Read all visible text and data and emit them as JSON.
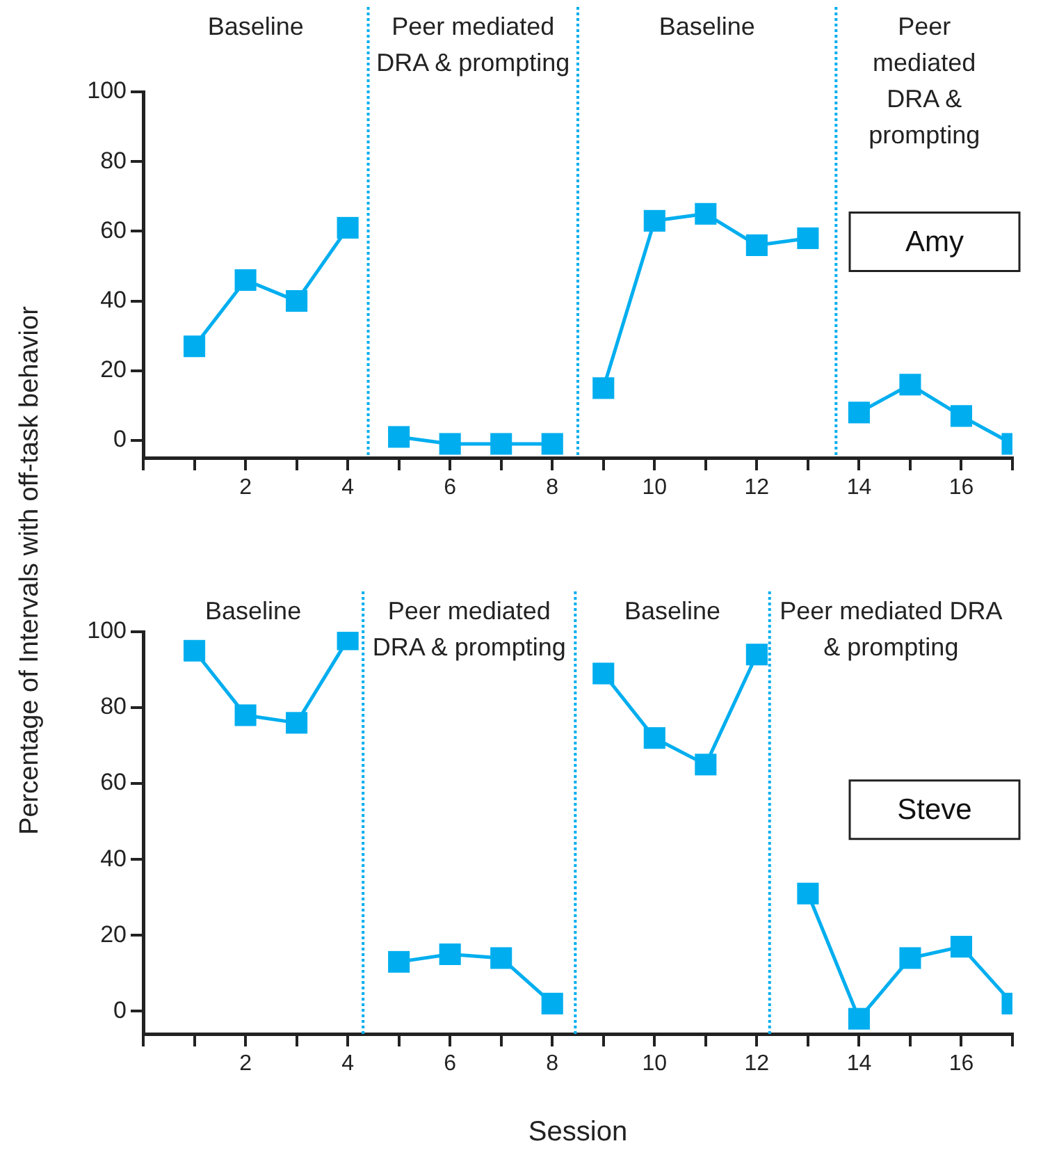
{
  "chart_data": [
    {
      "type": "line",
      "title": "Amy",
      "ylabel": "Percentage of Intervals with off-task behavior",
      "marker": "square",
      "line_style": "solid",
      "grid": false,
      "legend": false,
      "xlim": [
        0,
        17
      ],
      "xticks": [
        {
          "value": 0,
          "label": null
        },
        {
          "value": 1,
          "label": null
        },
        2,
        {
          "value": 3,
          "label": null
        },
        4,
        {
          "value": 5,
          "label": null
        },
        6,
        {
          "value": 7,
          "label": null
        },
        8,
        {
          "value": 9,
          "label": null
        },
        10,
        {
          "value": 11,
          "label": null
        },
        12,
        {
          "value": 13,
          "label": null
        },
        14,
        {
          "value": 15,
          "label": null
        },
        16,
        {
          "value": 17,
          "label": null
        }
      ],
      "ylim": [
        -5,
        100
      ],
      "yticks": [
        0,
        20,
        40,
        60,
        80,
        100
      ],
      "series": [
        {
          "color": "#00aeef",
          "x": [
            1,
            2,
            3,
            4
          ],
          "values": [
            27,
            46,
            40,
            61
          ]
        },
        {
          "color": "#00aeef",
          "x": [
            5,
            6,
            7,
            8
          ],
          "values": [
            1,
            -1,
            -1,
            -1
          ]
        },
        {
          "color": "#00aeef",
          "x": [
            9,
            10,
            11,
            12,
            13
          ],
          "values": [
            15,
            63,
            65,
            56,
            58
          ]
        },
        {
          "color": "#00aeef",
          "x": [
            14,
            15,
            16,
            17
          ],
          "values": [
            8,
            16,
            7,
            -1
          ]
        }
      ],
      "ref_lines": [
        {
          "axis": "x",
          "value": 4.4,
          "color": "#00aeef",
          "line_style": "dotted"
        },
        {
          "axis": "x",
          "value": 8.5,
          "color": "#00aeef",
          "line_style": "dotted"
        },
        {
          "axis": "x",
          "value": 13.55,
          "color": "#00aeef",
          "line_style": "dotted"
        }
      ],
      "annotations": [
        "Baseline",
        "Peer mediated DRA & prompting",
        "Baseline",
        "Peer mediated DRA & prompting"
      ]
    },
    {
      "type": "line",
      "title": "Steve",
      "xlabel": "Session",
      "marker": "square",
      "line_style": "solid",
      "grid": false,
      "legend": false,
      "xlim": [
        0,
        17
      ],
      "xticks": [
        {
          "value": 0,
          "label": null
        },
        {
          "value": 1,
          "label": null
        },
        2,
        {
          "value": 3,
          "label": null
        },
        4,
        {
          "value": 5,
          "label": null
        },
        6,
        {
          "value": 7,
          "label": null
        },
        8,
        {
          "value": 9,
          "label": null
        },
        10,
        {
          "value": 11,
          "label": null
        },
        12,
        {
          "value": 13,
          "label": null
        },
        14,
        {
          "value": 15,
          "label": null
        },
        16,
        {
          "value": 17,
          "label": null
        }
      ],
      "ylim": [
        -6,
        100
      ],
      "yticks": [
        0,
        20,
        40,
        60,
        80,
        100
      ],
      "series": [
        {
          "color": "#00aeef",
          "x": [
            1,
            2,
            3,
            4
          ],
          "values": [
            95,
            78,
            76,
            98
          ]
        },
        {
          "color": "#00aeef",
          "x": [
            5,
            6,
            7,
            8
          ],
          "values": [
            13,
            15,
            14,
            2
          ]
        },
        {
          "color": "#00aeef",
          "x": [
            9,
            10,
            11,
            12
          ],
          "values": [
            89,
            72,
            65,
            94
          ]
        },
        {
          "color": "#00aeef",
          "x": [
            13,
            14,
            15,
            16,
            17
          ],
          "values": [
            31,
            -2,
            14,
            17,
            2
          ]
        }
      ],
      "ref_lines": [
        {
          "axis": "x",
          "value": 4.3,
          "color": "#00aeef",
          "line_style": "dotted"
        },
        {
          "axis": "x",
          "value": 8.45,
          "color": "#00aeef",
          "line_style": "dotted"
        },
        {
          "axis": "x",
          "value": 12.25,
          "color": "#00aeef",
          "line_style": "dotted"
        }
      ],
      "annotations": [
        "Baseline",
        "Peer mediated DRA & prompting",
        "Baseline",
        "Peer mediated DRA & prompting"
      ]
    }
  ]
}
